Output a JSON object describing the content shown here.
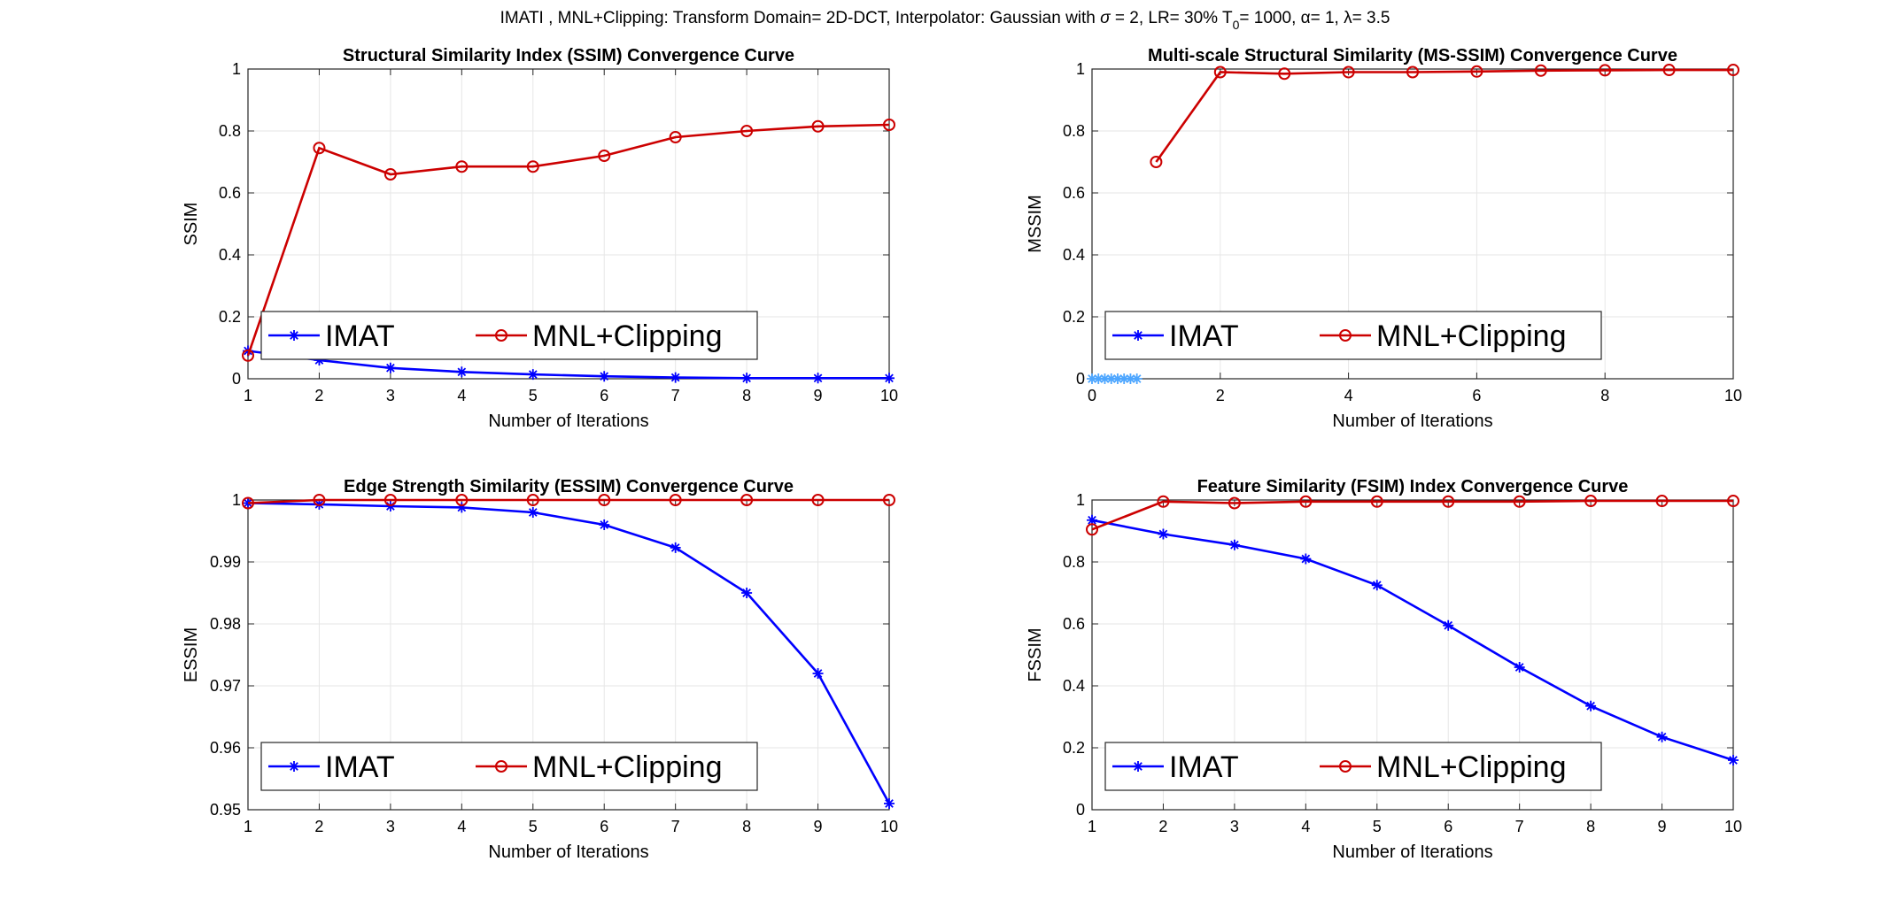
{
  "figure": {
    "suptitle": {
      "prefix": "IMATI , MNL+Clipping: Transform Domain= 2D-DCT, Interpolator: Gaussian with",
      "sigma_symbol": "σ",
      "sigma_value": " = 2, LR= 30% T",
      "t_subscript": "0",
      "t_value": "= 1000,",
      "alpha_symbol": "α",
      "alpha_value": "= 1,",
      "lambda_symbol": "λ",
      "lambda_value": "= 3.5"
    }
  },
  "colors": {
    "imat": "#0000ff",
    "mnl": "#cc0000",
    "imat_light": "#4da6ff",
    "grid": "#e6e6e6",
    "axis": "#262626"
  },
  "chart_data": [
    {
      "type": "line",
      "title": "Structural Similarity Index (SSIM) Convergence Curve",
      "xlabel": "Number of Iterations",
      "ylabel": "SSIM",
      "xlim": [
        1,
        10
      ],
      "ylim": [
        0,
        1
      ],
      "xticks": [
        1,
        2,
        3,
        4,
        5,
        6,
        7,
        8,
        9,
        10
      ],
      "yticks": [
        0,
        0.2,
        0.4,
        0.6,
        0.8,
        1
      ],
      "ytick_labels": [
        "0",
        "0.2",
        "0.4",
        "0.6",
        "0.8",
        "1"
      ],
      "grid": true,
      "legend": "bottom-left",
      "series": [
        {
          "name": "IMAT",
          "marker": "star",
          "x": [
            1,
            2,
            3,
            4,
            5,
            6,
            7,
            8,
            9,
            10
          ],
          "values": [
            0.09,
            0.06,
            0.035,
            0.022,
            0.014,
            0.008,
            0.004,
            0.002,
            0.002,
            0.002
          ]
        },
        {
          "name": "MNL+Clipping",
          "marker": "circle",
          "x": [
            1,
            2,
            3,
            4,
            5,
            6,
            7,
            8,
            9,
            10
          ],
          "values": [
            0.075,
            0.745,
            0.66,
            0.685,
            0.685,
            0.72,
            0.78,
            0.8,
            0.815,
            0.82
          ]
        }
      ]
    },
    {
      "type": "line",
      "title": "Multi-scale Structural Similarity (MS-SSIM) Convergence Curve",
      "xlabel": "Number of Iterations",
      "ylabel": "MSSIM",
      "xlim": [
        0,
        10
      ],
      "ylim": [
        0,
        1
      ],
      "xticks": [
        0,
        2,
        4,
        6,
        8,
        10
      ],
      "yticks": [
        0,
        0.2,
        0.4,
        0.6,
        0.8,
        1
      ],
      "ytick_labels": [
        "0",
        "0.2",
        "0.4",
        "0.6",
        "0.8",
        "1"
      ],
      "grid": true,
      "legend": "bottom-left",
      "series": [
        {
          "name": "IMAT",
          "marker": "star",
          "x": [
            0,
            0.1,
            0.2,
            0.3,
            0.4,
            0.5,
            0.6,
            0.7
          ],
          "values": [
            0,
            0,
            0,
            0,
            0,
            0,
            0,
            0
          ]
        },
        {
          "name": "MNL+Clipping",
          "marker": "circle",
          "x": [
            1,
            2,
            3,
            4,
            5,
            6,
            7,
            8,
            9,
            10
          ],
          "values": [
            0.7,
            0.99,
            0.985,
            0.99,
            0.99,
            0.992,
            0.995,
            0.996,
            0.997,
            0.997
          ]
        }
      ]
    },
    {
      "type": "line",
      "title": "Edge Strength Similarity (ESSIM) Convergence Curve",
      "xlabel": "Number of Iterations",
      "ylabel": "ESSIM",
      "xlim": [
        1,
        10
      ],
      "ylim": [
        0.95,
        1
      ],
      "xticks": [
        1,
        2,
        3,
        4,
        5,
        6,
        7,
        8,
        9,
        10
      ],
      "yticks": [
        0.95,
        0.96,
        0.97,
        0.98,
        0.99,
        1
      ],
      "ytick_labels": [
        "0.95",
        "0.96",
        "0.97",
        "0.98",
        "0.99",
        "1"
      ],
      "grid": true,
      "legend": "bottom-left",
      "series": [
        {
          "name": "IMAT",
          "marker": "star",
          "x": [
            1,
            2,
            3,
            4,
            5,
            6,
            7,
            8,
            9,
            10
          ],
          "values": [
            0.9995,
            0.9993,
            0.999,
            0.9988,
            0.998,
            0.996,
            0.9923,
            0.985,
            0.972,
            0.951
          ]
        },
        {
          "name": "MNL+Clipping",
          "marker": "circle",
          "x": [
            1,
            2,
            3,
            4,
            5,
            6,
            7,
            8,
            9,
            10
          ],
          "values": [
            0.9995,
            1.0,
            1.0,
            1.0,
            1.0,
            1.0,
            1.0,
            1.0,
            1.0,
            1.0
          ]
        }
      ]
    },
    {
      "type": "line",
      "title": "Feature Similarity (FSIM) Index Convergence Curve",
      "xlabel": "Number of Iterations",
      "ylabel": "FSSIM",
      "xlim": [
        1,
        10
      ],
      "ylim": [
        0,
        1
      ],
      "xticks": [
        1,
        2,
        3,
        4,
        5,
        6,
        7,
        8,
        9,
        10
      ],
      "yticks": [
        0,
        0.2,
        0.4,
        0.6,
        0.8,
        1
      ],
      "ytick_labels": [
        "0",
        "0.2",
        "0.4",
        "0.6",
        "0.8",
        "1"
      ],
      "grid": true,
      "legend": "bottom-left",
      "series": [
        {
          "name": "IMAT",
          "marker": "star",
          "x": [
            1,
            2,
            3,
            4,
            5,
            6,
            7,
            8,
            9,
            10
          ],
          "values": [
            0.935,
            0.89,
            0.855,
            0.81,
            0.725,
            0.595,
            0.46,
            0.335,
            0.235,
            0.16
          ]
        },
        {
          "name": "MNL+Clipping",
          "marker": "circle",
          "x": [
            1,
            2,
            3,
            4,
            5,
            6,
            7,
            8,
            9,
            10
          ],
          "values": [
            0.905,
            0.995,
            0.99,
            0.995,
            0.995,
            0.995,
            0.995,
            0.997,
            0.997,
            0.997
          ]
        }
      ]
    }
  ]
}
